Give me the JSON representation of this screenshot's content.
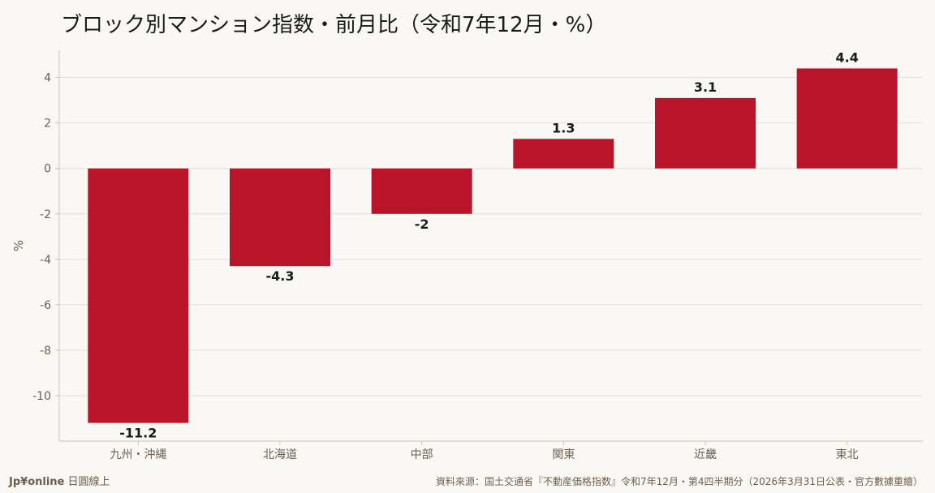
{
  "header": {
    "title": "ブロック別マンション指数・前月比（令和7年12月・%）"
  },
  "footer": {
    "brand_prefix": "Jp¥online",
    "brand_suffix": " 日圓線上",
    "source": "資料來源：国土交通省『不動産価格指数』令和7年12月・第4四半期分（2026年3月31日公表・官方數據重繪）"
  },
  "colors": {
    "bar": "#B8152B",
    "grid": "#E2DED6",
    "axis": "#C9C3B8",
    "background": "#FAF8F4"
  },
  "chart_data": {
    "type": "bar",
    "title": "ブロック別マンション指数・前月比（令和7年12月・%）",
    "xlabel": "",
    "ylabel": "%",
    "categories": [
      "九州・沖縄",
      "北海道",
      "中部",
      "関東",
      "近畿",
      "東北"
    ],
    "values": [
      -11.2,
      -4.3,
      -2,
      1.3,
      3.1,
      4.4
    ],
    "value_labels": [
      "-11.2",
      "-4.3",
      "-2",
      "1.3",
      "3.1",
      "4.4"
    ],
    "yticks": [
      4,
      2,
      0,
      -2,
      -4,
      -6,
      -8,
      -10
    ],
    "ylim": [
      -12.0,
      5.2
    ],
    "grid": true,
    "legend": "none"
  }
}
